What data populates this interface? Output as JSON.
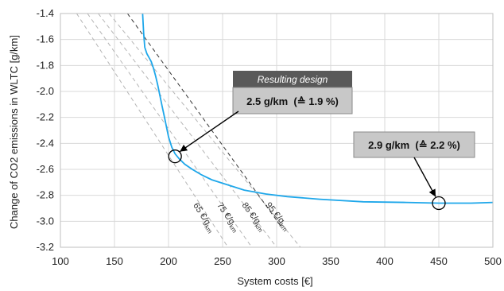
{
  "chart_data": {
    "type": "line",
    "xlabel": "System costs [€]",
    "ylabel": "Change of CO2 emissions in WLTC [g/km]",
    "xlim": [
      100,
      500
    ],
    "ylim": [
      -3.2,
      -1.4
    ],
    "xticks": [
      100,
      150,
      200,
      250,
      300,
      350,
      400,
      450,
      500
    ],
    "yticks": [
      -1.4,
      -1.6,
      -1.8,
      -2.0,
      -2.2,
      -2.4,
      -2.6,
      -2.8,
      -3.0,
      -3.2
    ],
    "ytick_labels": [
      "-1.4",
      "-1.6",
      "-1.8",
      "-2.0",
      "-2.2",
      "-2.4",
      "-2.6",
      "-2.8",
      "-3.0",
      "-3.2"
    ],
    "grid": true,
    "series": [
      {
        "color": "#1ea7ea",
        "x": [
          176,
          177,
          178,
          180,
          182,
          184,
          186,
          188,
          190,
          192,
          194,
          196,
          198,
          200,
          203,
          206,
          210,
          215,
          222,
          230,
          240,
          255,
          270,
          290,
          310,
          340,
          380,
          420,
          450,
          480,
          500
        ],
        "y": [
          -1.4,
          -1.55,
          -1.66,
          -1.71,
          -1.74,
          -1.77,
          -1.82,
          -1.88,
          -1.95,
          -2.03,
          -2.11,
          -2.19,
          -2.27,
          -2.35,
          -2.43,
          -2.48,
          -2.52,
          -2.56,
          -2.6,
          -2.64,
          -2.68,
          -2.72,
          -2.76,
          -2.79,
          -2.81,
          -2.83,
          -2.85,
          -2.855,
          -2.86,
          -2.86,
          -2.855
        ]
      }
    ],
    "iso_lines": [
      {
        "label": "65",
        "x1": 115,
        "y1": -1.4,
        "x2": 255,
        "y2": -3.2,
        "color": "#b5b5b5"
      },
      {
        "label": "75",
        "x1": 125,
        "y1": -1.4,
        "x2": 277,
        "y2": -3.2,
        "color": "#b5b5b5"
      },
      {
        "label": "85",
        "x1": 135,
        "y1": -1.4,
        "x2": 300,
        "y2": -3.2,
        "color": "#b5b5b5"
      },
      {
        "label": "95",
        "x1": 145,
        "y1": -1.4,
        "x2": 322,
        "y2": -3.2,
        "color": "#b5b5b5"
      },
      {
        "label": "",
        "x1": 162,
        "y1": -1.4,
        "x2": 305,
        "y2": -3.05,
        "color": "#333333"
      }
    ],
    "iso_unit_main": "€/g",
    "iso_unit_sub": "km",
    "markers": [
      {
        "x": 206,
        "y": -2.5
      },
      {
        "x": 450,
        "y": -2.86
      }
    ],
    "annotations": [
      {
        "header": "Resulting design",
        "text": "2.5 g/km  (≙ 1.9 %)"
      },
      {
        "text": "2.9 g/km  (≙ 2.2 %)"
      }
    ],
    "colors": {
      "curve": "#1ea7ea",
      "grid": "#d9d9d9",
      "callout_header": "#595959",
      "callout_body": "#c8c8c8"
    }
  }
}
